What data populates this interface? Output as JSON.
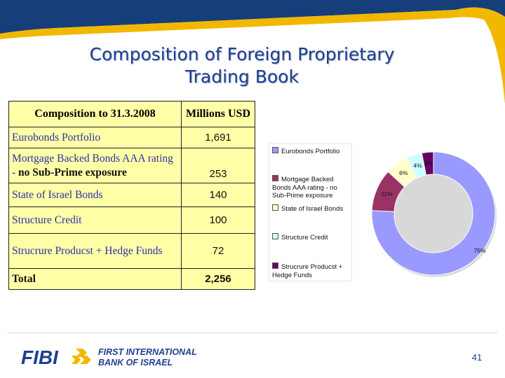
{
  "slide": {
    "title_line1": "Composition of Foreign Proprietary",
    "title_line2": "Trading Book",
    "page_number": "41"
  },
  "table": {
    "header_left": "Composition to 31.3.2008",
    "header_right": "Millions USD",
    "rows": [
      {
        "name": "Eurobonds Portfolio",
        "value": "1,691"
      },
      {
        "name_a": "Mortgage Backed Bonds AAA rating - ",
        "name_b": "no Sub-Prime exposure",
        "value": "253"
      },
      {
        "name": "State of Israel Bonds",
        "value": "140"
      },
      {
        "name": "Structure Credit",
        "value": "100"
      },
      {
        "name": "Strucrure Producst + Hedge Funds",
        "value": "72"
      }
    ],
    "total_label": "Total",
    "total_value": "2,256"
  },
  "chart_data": {
    "type": "pie",
    "subtype": "donut",
    "categories": [
      "Eurobonds Portfolio",
      "Mortgage Backed Bonds AAA rating - no Sub-Prime exposure",
      "State of Israel Bonds",
      "Structure Credit",
      "Strucrure Producst + Hedge Funds"
    ],
    "values": [
      75,
      11,
      6,
      4,
      3
    ],
    "data_labels": [
      "75%",
      "11%",
      "6%",
      "4%",
      "3%"
    ],
    "colors": [
      "#9999ff",
      "#993366",
      "#ffffcc",
      "#ccffff",
      "#660066"
    ],
    "legend_position": "left"
  },
  "logo": {
    "wordmark": "FIBI",
    "line1": "FIRST INTERNATIONAL",
    "line2": "BANK OF ISRAEL",
    "color": "#1f3f8f",
    "accent": "#f2b800"
  },
  "theme": {
    "navy": "#153e7a",
    "gold": "#f2b800",
    "title_color": "#1f3f8f",
    "table_bg": "#ffffa8"
  }
}
